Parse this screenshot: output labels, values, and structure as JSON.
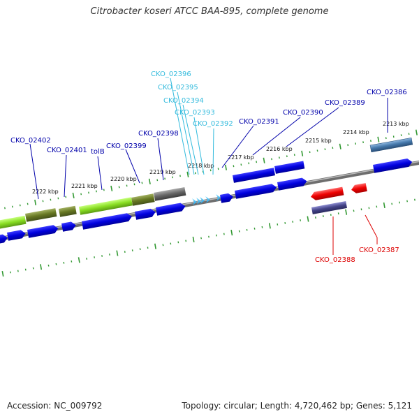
{
  "title": "Citrobacter koseri ATCC BAA-895, complete genome",
  "footer": {
    "accession": "Accession: NC_009792",
    "summary": "Topology: circular; Length: 4,720,462 bp; Genes: 5,121"
  },
  "colors": {
    "cds": "#0000dd",
    "cds_light": "#5555ff",
    "gene_label": "#0000aa",
    "rna_label": "#33bbdd",
    "rna": "#22aaee",
    "minus_label": "#dd0000",
    "highlight": "#dd0000",
    "green": "#88dd22",
    "olive": "#667722",
    "gray": "#666666",
    "steel": "#4477aa",
    "purple": "#444488",
    "backbone": "#888888",
    "ruler": "#339933"
  },
  "ruler_labels": [
    "2213 kbp",
    "2214 kbp",
    "2215 kbp",
    "2216 kbp",
    "2217 kbp",
    "2218 kbp",
    "2219 kbp",
    "2220 kbp",
    "2221 kbp",
    "2222 kbp"
  ],
  "gene_labels": [
    {
      "text": "CKO_02386",
      "kind": "cds"
    },
    {
      "text": "CKO_02389",
      "kind": "cds"
    },
    {
      "text": "CKO_02390",
      "kind": "cds"
    },
    {
      "text": "CKO_02391",
      "kind": "cds"
    },
    {
      "text": "CKO_02392",
      "kind": "rna"
    },
    {
      "text": "CKO_02393",
      "kind": "rna"
    },
    {
      "text": "CKO_02394",
      "kind": "rna"
    },
    {
      "text": "CKO_02395",
      "kind": "rna"
    },
    {
      "text": "CKO_02396",
      "kind": "rna"
    },
    {
      "text": "CKO_02398",
      "kind": "cds"
    },
    {
      "text": "CKO_02399",
      "kind": "cds"
    },
    {
      "text": "tolB",
      "kind": "cds"
    },
    {
      "text": "CKO_02401",
      "kind": "cds"
    },
    {
      "text": "CKO_02402",
      "kind": "cds"
    },
    {
      "text": "CKO_02387",
      "kind": "minus"
    },
    {
      "text": "CKO_02388",
      "kind": "minus"
    }
  ]
}
